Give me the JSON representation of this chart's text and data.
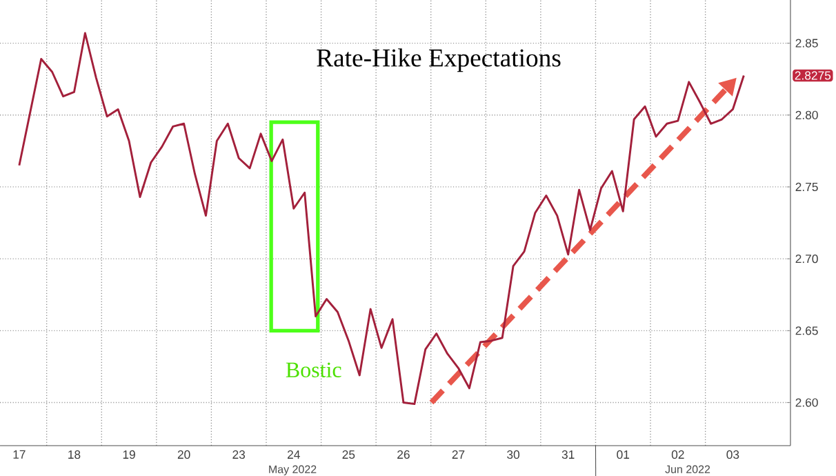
{
  "chart_data": {
    "type": "line",
    "title": "Rate-Hike Expectations",
    "categories": [
      "17",
      null,
      null,
      null,
      null,
      "18",
      null,
      null,
      null,
      null,
      "19",
      null,
      null,
      null,
      null,
      "20",
      null,
      null,
      null,
      null,
      "23",
      null,
      null,
      null,
      null,
      "24",
      null,
      null,
      null,
      null,
      "25",
      null,
      null,
      null,
      null,
      "26",
      null,
      null,
      null,
      null,
      "27",
      null,
      null,
      null,
      null,
      "30",
      null,
      null,
      null,
      null,
      "31",
      null,
      null,
      null,
      null,
      "01",
      null,
      null,
      null,
      null,
      "02",
      null,
      null,
      null,
      null,
      "03",
      null
    ],
    "series": [
      {
        "color": "#a3203b",
        "values": [
          2.765,
          2.802,
          2.839,
          2.83,
          2.813,
          2.816,
          2.857,
          2.826,
          2.799,
          2.804,
          2.782,
          2.743,
          2.767,
          2.778,
          2.792,
          2.794,
          2.759,
          2.73,
          2.782,
          2.794,
          2.77,
          2.763,
          2.787,
          2.768,
          2.783,
          2.735,
          2.746,
          2.66,
          2.672,
          2.663,
          2.643,
          2.619,
          2.665,
          2.638,
          2.658,
          2.6,
          2.599,
          2.637,
          2.648,
          2.634,
          2.624,
          2.61,
          2.642,
          2.643,
          2.645,
          2.695,
          2.705,
          2.732,
          2.744,
          2.73,
          2.703,
          2.748,
          2.72,
          2.749,
          2.761,
          2.733,
          2.797,
          2.806,
          2.785,
          2.794,
          2.796,
          2.823,
          2.809,
          2.794,
          2.797,
          2.804,
          2.8275
        ]
      }
    ],
    "ylim": [
      2.57,
      2.88
    ],
    "yticks": [
      {
        "value": 2.6,
        "label": "2.60"
      },
      {
        "value": 2.65,
        "label": "2.65"
      },
      {
        "value": 2.7,
        "label": "2.70"
      },
      {
        "value": 2.75,
        "label": "2.75"
      },
      {
        "value": 2.8,
        "label": "2.80"
      },
      {
        "value": 2.85,
        "label": "2.85"
      }
    ],
    "grid": true,
    "annotations": [
      "Bostic",
      "May 2022",
      "Jun 2022",
      "2.8275"
    ]
  }
}
